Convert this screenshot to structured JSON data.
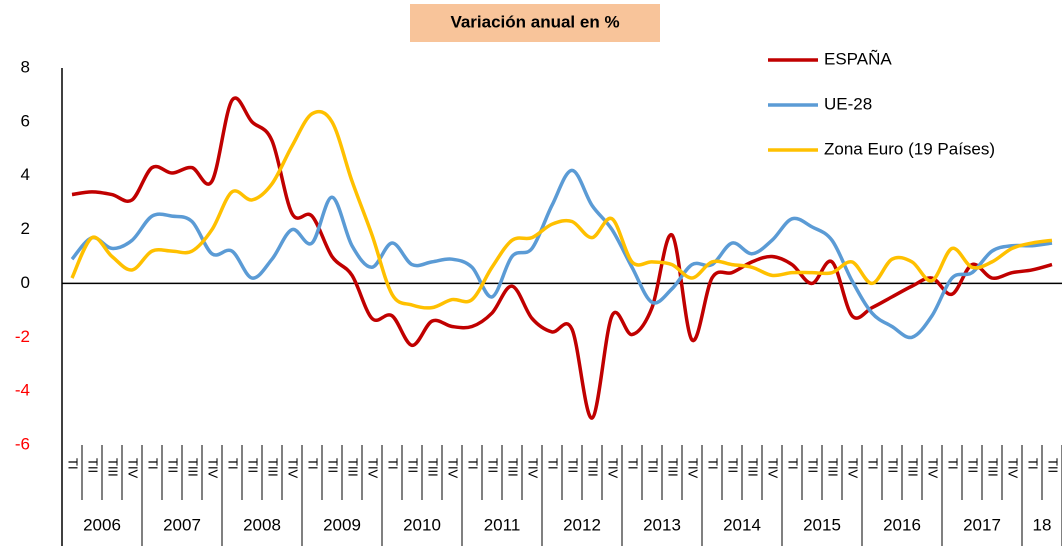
{
  "chart_data": {
    "type": "line",
    "title": "Variación anual en %",
    "categories": [
      "TI",
      "TII",
      "TIII",
      "TIV",
      "TI",
      "TII",
      "TIII",
      "TIV",
      "TI",
      "TII",
      "TIII",
      "TIV",
      "TI",
      "TII",
      "TIII",
      "TIV",
      "TI",
      "TII",
      "TIII",
      "TIV",
      "TI",
      "TII",
      "TIII",
      "TIV",
      "TI",
      "TII",
      "TIII",
      "TIV",
      "TI",
      "TII",
      "TIII",
      "TIV",
      "TI",
      "TII",
      "TIII",
      "TIV",
      "TI",
      "TII",
      "TIII",
      "TIV",
      "TI",
      "TII",
      "TIII",
      "TIV",
      "TI",
      "TII",
      "TIII",
      "TIV",
      "TI",
      "TII"
    ],
    "years": [
      "2006",
      "2007",
      "2008",
      "2009",
      "2010",
      "2011",
      "2012",
      "2013",
      "2014",
      "2015",
      "2016",
      "2017",
      "18"
    ],
    "series": [
      {
        "name": "ESPAÑA",
        "color": "#c00000",
        "values": [
          3.3,
          3.4,
          3.3,
          3.1,
          4.3,
          4.1,
          4.3,
          3.8,
          6.8,
          6.0,
          5.3,
          2.6,
          2.5,
          1.0,
          0.3,
          -1.3,
          -1.2,
          -2.3,
          -1.4,
          -1.6,
          -1.6,
          -1.1,
          -0.1,
          -1.3,
          -1.8,
          -1.7,
          -5.0,
          -1.2,
          -1.9,
          -0.9,
          1.8,
          -2.1,
          0.2,
          0.4,
          0.8,
          1.0,
          0.7,
          0.0,
          0.8,
          -1.2,
          -0.9,
          -0.5,
          -0.1,
          0.2,
          -0.4,
          0.7,
          0.2,
          0.4,
          0.5,
          0.7
        ]
      },
      {
        "name": "UE-28",
        "color": "#5b9bd5",
        "values": [
          0.9,
          1.7,
          1.3,
          1.6,
          2.5,
          2.5,
          2.3,
          1.1,
          1.2,
          0.2,
          0.9,
          2.0,
          1.5,
          3.2,
          1.4,
          0.6,
          1.5,
          0.7,
          0.8,
          0.9,
          0.6,
          -0.5,
          1.0,
          1.3,
          2.9,
          4.2,
          2.9,
          2.0,
          0.6,
          -0.7,
          -0.2,
          0.7,
          0.7,
          1.5,
          1.1,
          1.6,
          2.4,
          2.1,
          1.6,
          0.1,
          -1.1,
          -1.6,
          -2.0,
          -1.2,
          0.2,
          0.4,
          1.2,
          1.4,
          1.4,
          1.5
        ]
      },
      {
        "name": "Zona Euro (19 Países)",
        "color": "#ffc000",
        "values": [
          0.2,
          1.7,
          1.0,
          0.5,
          1.2,
          1.2,
          1.2,
          2.0,
          3.4,
          3.1,
          3.7,
          5.1,
          6.3,
          6.0,
          3.8,
          1.8,
          -0.4,
          -0.8,
          -0.9,
          -0.6,
          -0.6,
          0.6,
          1.6,
          1.7,
          2.2,
          2.3,
          1.7,
          2.4,
          0.8,
          0.8,
          0.7,
          0.2,
          0.8,
          0.7,
          0.6,
          0.3,
          0.4,
          0.4,
          0.4,
          0.8,
          0.0,
          0.9,
          0.8,
          0.1,
          1.3,
          0.6,
          0.8,
          1.3,
          1.5,
          1.6
        ]
      }
    ],
    "ylim": [
      -6,
      8
    ],
    "yticks": [
      -6,
      -4,
      -2,
      0,
      2,
      4,
      6,
      8
    ],
    "negative_tick_color": "#ff0000",
    "title_background": "#f8c49a",
    "legend": "upper right",
    "smooth": true
  }
}
